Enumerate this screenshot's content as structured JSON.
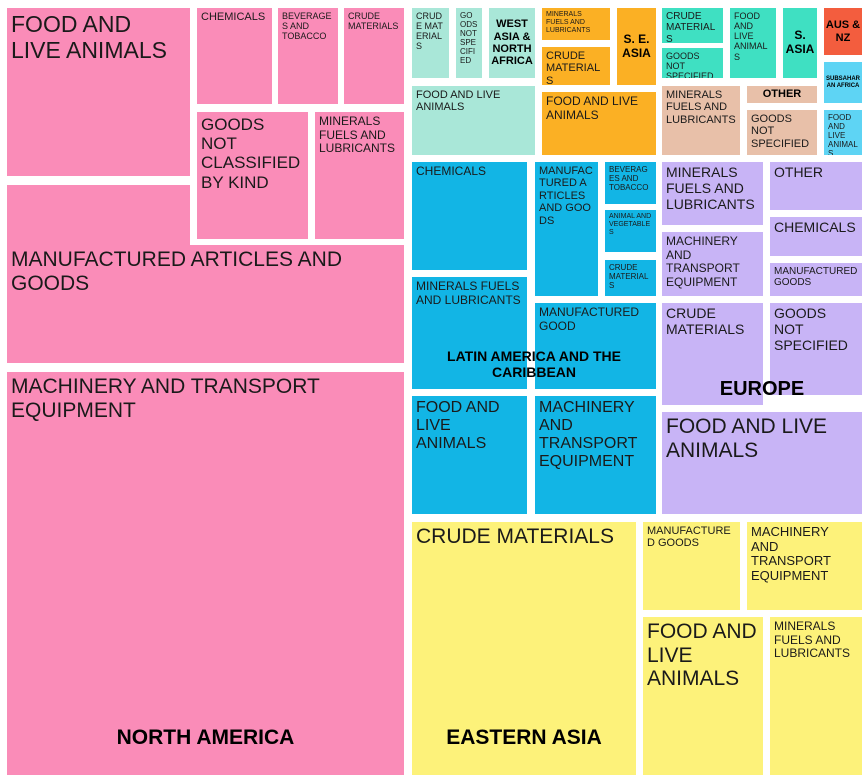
{
  "regions": [
    {
      "name": "NORTH AMERICA",
      "color": "#fa8cb8",
      "items": [
        "FOOD AND LIVE ANIMALS",
        "CHEMICALS",
        "BEVERAGES AND TOBACCO",
        "CRUDE MATERIALS",
        "GOODS NOT CLASSIFIED BY KIND",
        "MINERALS FUELS AND LUBRICANTS",
        "MANUFACTURED ARTICLES AND GOODS",
        "MACHINERY AND TRANSPORT EQUIPMENT"
      ]
    },
    {
      "name": "EASTERN ASIA",
      "color": "#fdf27a",
      "items": [
        "CRUDE MATERIALS",
        "MANUFACTURED GOODS",
        "MACHINERY AND TRANSPORT EQUIPMENT",
        "FOOD AND LIVE ANIMALS",
        "MINERALS FUELS AND LUBRICANTS"
      ]
    },
    {
      "name": "LATIN AMERICA AND THE CARIBBEAN",
      "color": "#12b5e5",
      "items": [
        "CHEMICALS",
        "MANUFACTURED ARTICLES AND GOODS",
        "BEVERAGES AND TOBACCO",
        "ANIMAL AND VEGETABLES",
        "CRUDE MATERIALS",
        "MINERALS FUELS AND LUBRICANTS",
        "MANUFACTURED GOOD",
        "FOOD AND LIVE ANIMALS",
        "MACHINERY AND TRANSPORT EQUIPMENT"
      ]
    },
    {
      "name": "EUROPE",
      "color": "#c8b4f6",
      "items": [
        "MINERALS FUELS AND LUBRICANTS",
        "OTHER",
        "CHEMICALS",
        "MACHINERY AND TRANSPORT EQUIPMENT",
        "MANUFACTURED GOODS",
        "CRUDE MATERIALS",
        "GOODS NOT SPECIFIED",
        "FOOD AND LIVE ANIMALS"
      ]
    },
    {
      "name": "WEST ASIA & NORTH AFRICA",
      "color": "#a9e7d8",
      "items": [
        "CRUDE MATERIALS",
        "GOODS NOT SPECIFIED",
        "FOOD AND LIVE ANIMALS"
      ]
    },
    {
      "name": "S. E. ASIA",
      "color": "#fbb024",
      "items": [
        "MINERALS FUELS AND LUBRICANTS",
        "CRUDE MATERIALS",
        "FOOD AND LIVE ANIMALS"
      ]
    },
    {
      "name": "S. ASIA",
      "color": "#3fe0c2",
      "items": [
        "CRUDE MATERIALS",
        "GOODS NOT SPECIFIED",
        "FOOD AND LIVE ANIMALS"
      ]
    },
    {
      "name": "OTHER",
      "color": "#e8c0a9",
      "items": [
        "MINERALS FUELS AND LUBRICANTS",
        "GOODS NOT SPECIFIED"
      ]
    },
    {
      "name": "AUS & NZ",
      "color": "#f35d3e"
    },
    {
      "name": "SUBSAHARAN AFRICA",
      "color": "#5ed4f4",
      "items": [
        "FOOD AND LIVE ANIMALS"
      ]
    }
  ]
}
